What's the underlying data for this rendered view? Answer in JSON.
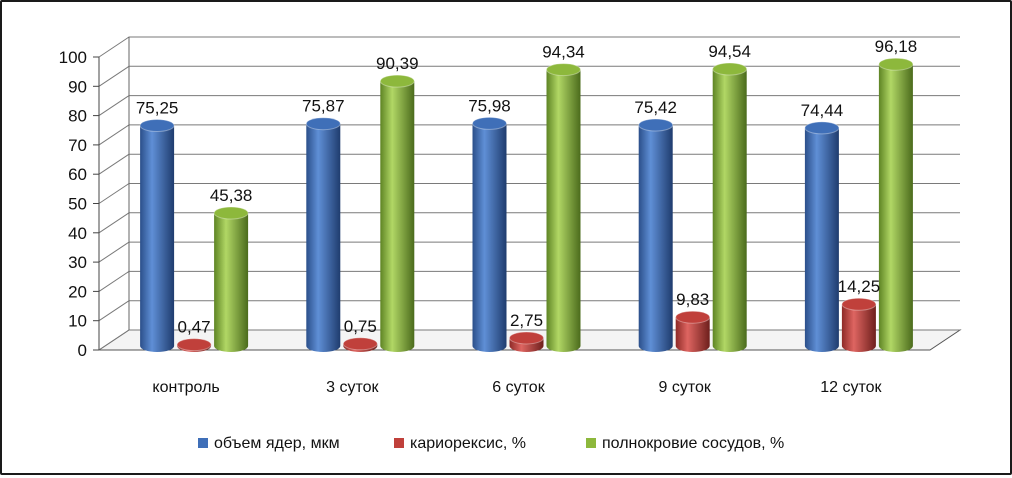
{
  "chart_data": {
    "type": "bar",
    "categories": [
      "контроль",
      "3 суток",
      "6 суток",
      "9 суток",
      "12 суток"
    ],
    "series": [
      {
        "name": "объем ядер, мкм",
        "values": [
          75.25,
          75.87,
          75.98,
          75.42,
          74.44
        ],
        "labels": [
          "75,25",
          "75,87",
          "75,98",
          "75,42",
          "74,44"
        ],
        "color": "#3F6FB8"
      },
      {
        "name": "кариорексис, %",
        "values": [
          0.47,
          0.75,
          2.75,
          9.83,
          14.25
        ],
        "labels": [
          "0,47",
          "0,75",
          "2,75",
          "9,83",
          "14,25"
        ],
        "color": "#C0403B"
      },
      {
        "name": "полнокровие сосудов, %",
        "values": [
          45.38,
          90.39,
          94.34,
          94.54,
          96.18
        ],
        "labels": [
          "45,38",
          "90,39",
          "94,34",
          "94,54",
          "96,18"
        ],
        "color": "#8DB83C"
      }
    ],
    "ylim": [
      0,
      100
    ],
    "yticks": [
      "0",
      "10",
      "20",
      "30",
      "40",
      "50",
      "60",
      "70",
      "80",
      "90",
      "100"
    ],
    "grid": true,
    "legend_position": "bottom",
    "style": "3d-cylinder"
  }
}
